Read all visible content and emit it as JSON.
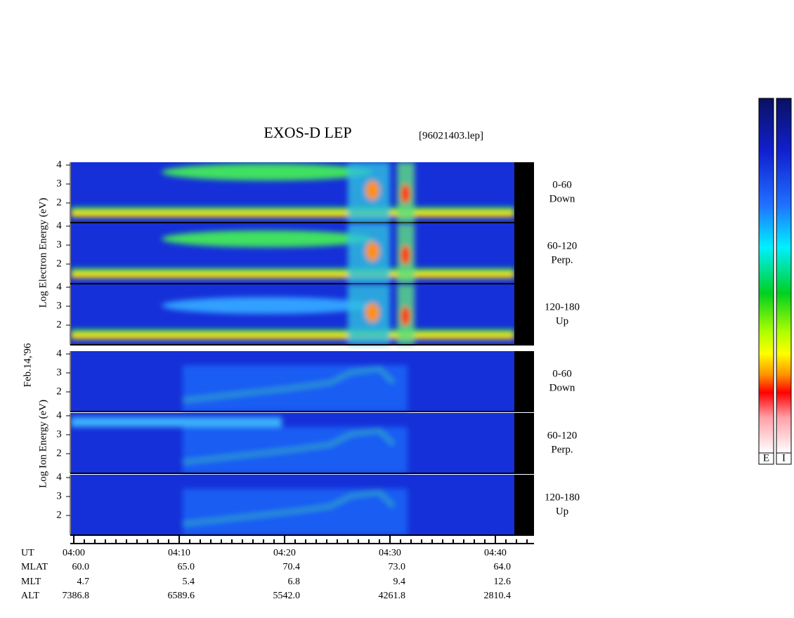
{
  "title": "EXOS-D LEP",
  "file": "[96021403.lep]",
  "electron_label": "Log  Electron  Energy  (eV)",
  "ion_label": "Log  Ion  Energy  (eV)",
  "date": "Feb.14,'96",
  "panels": [
    {
      "yticks": [
        "2",
        "3",
        "4"
      ],
      "angle": "0-60",
      "direction": "Down"
    },
    {
      "yticks": [
        "2",
        "3",
        "4"
      ],
      "angle": "60-120",
      "direction": "Perp."
    },
    {
      "yticks": [
        "2",
        "3",
        "4"
      ],
      "angle": "120-180",
      "direction": "Up"
    },
    {
      "yticks": [
        "2",
        "3",
        "4"
      ],
      "angle": "0-60",
      "direction": "Down"
    },
    {
      "yticks": [
        "2",
        "3",
        "4"
      ],
      "angle": "60-120",
      "direction": "Perp."
    },
    {
      "yticks": [
        "2",
        "3",
        "4"
      ],
      "angle": "120-180",
      "direction": "Up"
    }
  ],
  "table": {
    "rows": [
      [
        "UT",
        "04:00",
        "04:10",
        "04:20",
        "04:30",
        "04:40"
      ],
      [
        "MLAT",
        "60.0",
        "65.0",
        "70.4",
        "73.0",
        "64.0"
      ],
      [
        "MLT",
        "4.7",
        "5.4",
        "6.8",
        "9.4",
        "12.6"
      ],
      [
        "ALT",
        "7386.8",
        "6589.6",
        "5542.0",
        "4261.8",
        "2810.4"
      ]
    ]
  },
  "colorbars": [
    "E",
    "I"
  ]
}
